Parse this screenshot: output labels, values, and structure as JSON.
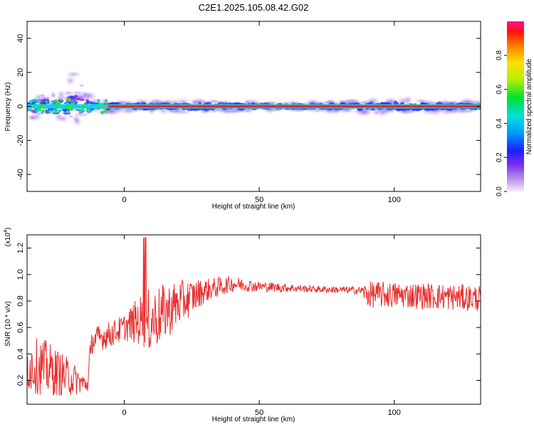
{
  "title": "C2E1.2025.105.08.42.G02",
  "chart_data": [
    {
      "type": "heatmap",
      "xlabel": "Height of straight line (km)",
      "ylabel": "Frequency (Hz)",
      "xlim": [
        -36,
        132
      ],
      "ylim": [
        -50,
        50
      ],
      "xticks": [
        0,
        50,
        100
      ],
      "yticks": [
        -40,
        -20,
        0,
        20,
        40
      ],
      "colorbar": {
        "label": "Normalized spectral amplitude",
        "range": [
          0,
          1
        ],
        "ticks": [
          0.0,
          0.2,
          0.4,
          0.6,
          0.8
        ]
      },
      "band": {
        "center_hz": 0,
        "spread_hz_by_height": [
          {
            "x": -36,
            "spread": 8
          },
          {
            "x": -25,
            "spread": 9
          },
          {
            "x": -18,
            "spread": 14
          },
          {
            "x": -10,
            "spread": 4
          },
          {
            "x": 0,
            "spread": 3
          },
          {
            "x": 30,
            "spread": 4
          },
          {
            "x": 60,
            "spread": 2
          },
          {
            "x": 90,
            "spread": 4
          },
          {
            "x": 100,
            "spread": 5
          },
          {
            "x": 132,
            "spread": 3
          }
        ]
      }
    },
    {
      "type": "line",
      "xlabel": "Height of straight line (km)",
      "ylabel": "SNR (10 * v/v)",
      "y_multiplier_label": "(x10",
      "y_multiplier_exp": "4",
      "y_multiplier_close": ")",
      "xlim": [
        -36,
        132
      ],
      "ylim": [
        0.02,
        1.3
      ],
      "xticks": [
        0,
        50,
        100
      ],
      "yticks": [
        0.2,
        0.4,
        0.6,
        0.8,
        1.0,
        1.2
      ],
      "color": "#e83030",
      "series": [
        {
          "values_by_height": [
            {
              "x": -36,
              "mean": 0.32,
              "amp": 0.2
            },
            {
              "x": -30,
              "mean": 0.3,
              "amp": 0.22
            },
            {
              "x": -20,
              "mean": 0.22,
              "amp": 0.14
            },
            {
              "x": -13,
              "mean": 0.16,
              "amp": 0.05
            },
            {
              "x": -12,
              "mean": 0.5,
              "amp": 0.1
            },
            {
              "x": -5,
              "mean": 0.55,
              "amp": 0.1
            },
            {
              "x": 0,
              "mean": 0.6,
              "amp": 0.1
            },
            {
              "x": 5,
              "mean": 0.65,
              "amp": 0.18
            },
            {
              "x": 10,
              "mean": 0.65,
              "amp": 0.25
            },
            {
              "x": 20,
              "mean": 0.78,
              "amp": 0.18
            },
            {
              "x": 30,
              "mean": 0.88,
              "amp": 0.09
            },
            {
              "x": 40,
              "mean": 0.93,
              "amp": 0.06
            },
            {
              "x": 50,
              "mean": 0.91,
              "amp": 0.04
            },
            {
              "x": 70,
              "mean": 0.89,
              "amp": 0.025
            },
            {
              "x": 88,
              "mean": 0.88,
              "amp": 0.03
            },
            {
              "x": 90,
              "mean": 0.85,
              "amp": 0.1
            },
            {
              "x": 110,
              "mean": 0.84,
              "amp": 0.1
            },
            {
              "x": 132,
              "mean": 0.82,
              "amp": 0.1
            }
          ]
        }
      ]
    }
  ]
}
